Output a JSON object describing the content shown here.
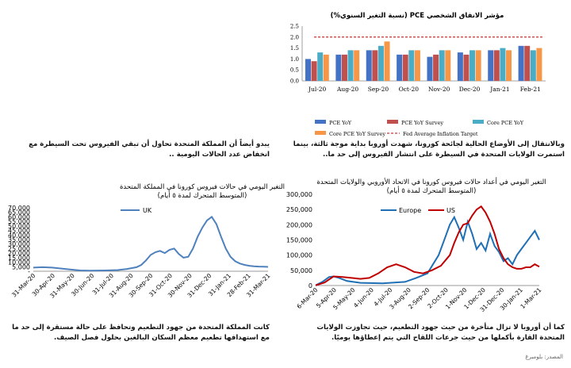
{
  "chart_data": [
    {
      "type": "bar",
      "title": "مؤشر الانفاق الشخصي PCE (نسبة التغير السنوي%)",
      "categories": [
        "Jul-20",
        "Aug-20",
        "Sep-20",
        "Oct-20",
        "Nov-20",
        "Dec-20",
        "Jan-21",
        "Feb-21"
      ],
      "ylim": [
        0,
        2.5
      ],
      "yticks": [
        "0.0",
        "0.5",
        "1.0",
        "1.5",
        "2.0",
        "2.5"
      ],
      "series": [
        {
          "name": "PCE YoY",
          "color": "#4472c4",
          "values": [
            1.0,
            1.2,
            1.4,
            1.2,
            1.1,
            1.3,
            1.4,
            1.6
          ]
        },
        {
          "name": "PCE YoY Survey",
          "color": "#c0504d",
          "values": [
            0.9,
            1.2,
            1.4,
            1.2,
            1.2,
            1.2,
            1.4,
            1.6
          ]
        },
        {
          "name": "Core PCE YoY",
          "color": "#4bacc6",
          "values": [
            1.3,
            1.4,
            1.6,
            1.4,
            1.4,
            1.4,
            1.5,
            1.4
          ]
        },
        {
          "name": "Core PCE YoY Survey",
          "color": "#f79646",
          "values": [
            1.2,
            1.4,
            1.8,
            1.4,
            1.4,
            1.4,
            1.4,
            1.5
          ]
        }
      ],
      "reference_line": {
        "name": "Fed Average Inflation Target",
        "value": 2.0,
        "color": "#c00000"
      }
    },
    {
      "type": "line",
      "title_line1": "التغير اليومي في حالات فيروس كورونا في المملكة المتحدة",
      "title_line2": "(المتوسط المتحرك لمدة ٥ أيام)",
      "series": [
        {
          "name": "UK",
          "color": "#4f81bd",
          "x": [
            0,
            0.04,
            0.08,
            0.12,
            0.16,
            0.2,
            0.24,
            0.28,
            0.32,
            0.36,
            0.4,
            0.44,
            0.46,
            0.48,
            0.5,
            0.52,
            0.54,
            0.56,
            0.58,
            0.6,
            0.62,
            0.64,
            0.66,
            0.68,
            0.7,
            0.72,
            0.74,
            0.76,
            0.78,
            0.8,
            0.82,
            0.84,
            0.86,
            0.88,
            0.9,
            0.92,
            0.94,
            0.96,
            0.98,
            1.0
          ],
          "values": [
            4000,
            4500,
            4000,
            3000,
            1800,
            900,
            700,
            800,
            1000,
            1300,
            2500,
            4500,
            7000,
            12000,
            18000,
            21000,
            22500,
            20000,
            23500,
            25000,
            19000,
            15000,
            16000,
            25000,
            38000,
            48000,
            56000,
            60000,
            52000,
            38000,
            25000,
            16000,
            11000,
            8500,
            7000,
            6000,
            5500,
            5200,
            5000,
            4800
          ]
        }
      ],
      "yticks": [
        "-",
        "5,000",
        "10,000",
        "15,000",
        "20,000",
        "25,000",
        "30,000",
        "35,000",
        "40,000",
        "45,000",
        "50,000",
        "55,000",
        "60,000",
        "65,000",
        "70,000"
      ],
      "ylim": [
        0,
        70000
      ],
      "xticks": [
        "31-Mar-20",
        "30-Apr-20",
        "31-May-20",
        "30-Jun-20",
        "31-Jul-20",
        "31-Aug-20",
        "30-Sep-20",
        "31-Oct-20",
        "30-Nov-20",
        "31-Dec-20",
        "31-Jan-21",
        "28-Feb-21",
        "31-Mar-21"
      ]
    },
    {
      "type": "line",
      "title_line1": "التغير اليومي في أعداد حالات فيروس كورونا في الاتحاد الأوروبي والولايات المتحدة",
      "title_line2": "(المتوسط المتحرك لمدة ٥ أيام)",
      "ylim": [
        0,
        300000
      ],
      "yticks": [
        "0",
        "50,000",
        "100,000",
        "150,000",
        "200,000",
        "250,000",
        "300,000"
      ],
      "xticks": [
        "6-Mar-20",
        "5-Apr-20",
        "5-May-20",
        "4-Jun-20",
        "4-Jul-20",
        "3-Aug-20",
        "2-Sep-20",
        "2-Oct-20",
        "1-Nov-20",
        "1-Dec-20",
        "31-Dec-20",
        "30-Jan-21",
        "1-Mar-21"
      ],
      "series": [
        {
          "name": "Europe",
          "color": "#1f6fb5",
          "x": [
            0,
            0.03,
            0.06,
            0.08,
            0.1,
            0.14,
            0.2,
            0.3,
            0.4,
            0.45,
            0.5,
            0.55,
            0.58,
            0.6,
            0.62,
            0.64,
            0.66,
            0.68,
            0.7,
            0.72,
            0.74,
            0.76,
            0.78,
            0.8,
            0.82,
            0.84,
            0.86,
            0.88,
            0.9,
            0.92,
            0.94,
            0.96,
            0.98,
            1.0
          ],
          "values": [
            1000,
            12000,
            28000,
            30000,
            26000,
            15000,
            9000,
            7000,
            12000,
            25000,
            40000,
            100000,
            160000,
            200000,
            225000,
            190000,
            150000,
            210000,
            170000,
            120000,
            140000,
            115000,
            170000,
            130000,
            110000,
            80000,
            90000,
            70000,
            100000,
            120000,
            140000,
            160000,
            180000,
            150000
          ]
        },
        {
          "name": "US",
          "color": "#c00000",
          "x": [
            0,
            0.04,
            0.08,
            0.12,
            0.16,
            0.2,
            0.24,
            0.28,
            0.32,
            0.36,
            0.4,
            0.44,
            0.48,
            0.52,
            0.56,
            0.6,
            0.62,
            0.64,
            0.66,
            0.68,
            0.7,
            0.72,
            0.74,
            0.76,
            0.78,
            0.8,
            0.82,
            0.84,
            0.86,
            0.88,
            0.9,
            0.92,
            0.94,
            0.96,
            0.98,
            1.0
          ],
          "values": [
            500,
            10000,
            30000,
            28000,
            25000,
            22000,
            25000,
            40000,
            60000,
            70000,
            60000,
            45000,
            40000,
            50000,
            65000,
            100000,
            140000,
            175000,
            200000,
            205000,
            230000,
            250000,
            260000,
            240000,
            210000,
            170000,
            120000,
            90000,
            70000,
            60000,
            55000,
            55000,
            60000,
            60000,
            70000,
            62000
          ]
        }
      ]
    }
  ],
  "paragraphs": {
    "mid_right": "وبالانتقال إلى الأوضاع الحالية لجائحة كورونا، شهدت أوروبا بداية موجة ثالثة، بينما استمرت الولايات المتحدة في السيطرة على انتشار الفيروس إلى حد ما..",
    "mid_left": "يبدو أيضاً أن المملكة المتحدة تحاول أن تبقي الفيروس تحت السيطرة مع انخفاض عدد الحالات اليومية ..",
    "bottom_right": "كما أن أوروبا لا تزال متأخرة من حيث جهود التطعيم، حيث تجاوزت الولايات المتحدة القارة بأكملها من حيث جرعات اللقاح التي يتم إعطاؤها يوميًا.",
    "bottom_left": "كانت المملكة المتحدة من جهود التطعيم وتحافظ على حالة مستقرة إلى حد ما مع استهدافها تطعيم معظم السكان البالغين بحلول فصل الصيف."
  },
  "footer": "المصدر: بلومبرغ"
}
